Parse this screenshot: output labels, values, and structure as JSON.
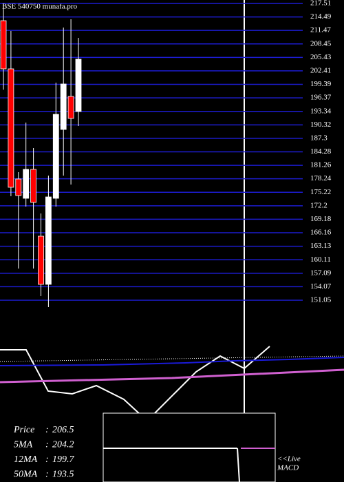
{
  "chart_data": {
    "type": "candlestick",
    "title": "BSE 540750 munafa.pro",
    "open": [
      213.65,
      202.86,
      178.19,
      173.87,
      180.35,
      165.39,
      154.6,
      173.87,
      189.29,
      196.69,
      193.3
    ],
    "high": [
      217.5,
      211.34,
      179.73,
      190.83,
      185.13,
      170.48,
      178.96,
      199.78,
      212.11,
      213.96,
      209.8
    ],
    "low": [
      198.2,
      174.33,
      158.14,
      172.02,
      158.14,
      151.97,
      149.5,
      172.02,
      178.96,
      176.96,
      190.06
    ],
    "close": [
      202.86,
      176.34,
      174.49,
      180.35,
      172.95,
      154.6,
      174.18,
      192.68,
      199.47,
      191.76,
      205.02
    ],
    "up_color": "#ffffff",
    "down_color": "#ff0000",
    "grid_color": "#1c1cd0",
    "ylim": [
      148.89,
      218.28
    ],
    "yticks": [
      217.51,
      214.49,
      211.47,
      208.45,
      205.43,
      202.41,
      199.39,
      196.37,
      193.34,
      190.32,
      187.3,
      184.28,
      181.26,
      178.24,
      175.22,
      172.2,
      169.18,
      166.16,
      163.13,
      160.11,
      157.09,
      154.07,
      151.05
    ],
    "grid": true,
    "stats": [
      {
        "label": "Price",
        "value": 206.5
      },
      {
        "label": "5MA",
        "value": 204.2
      },
      {
        "label": "12MA",
        "value": 199.7
      },
      {
        "label": "50MA",
        "value": 193.5
      }
    ],
    "separator": ":",
    "live_label": "<<Live",
    "indicator_label": "MACD"
  }
}
